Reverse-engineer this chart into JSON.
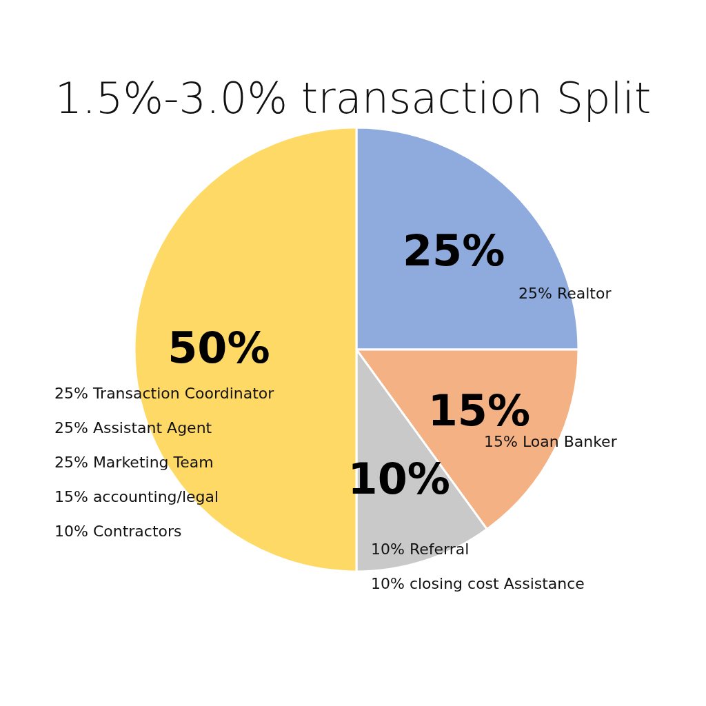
{
  "chart_data": {
    "type": "pie",
    "title": "1.5%-3.0% transaction Split",
    "categories": [
      null,
      null,
      null,
      null
    ],
    "values": [
      25,
      15,
      10,
      50
    ],
    "colors": [
      "#8faadc",
      "#f4b183",
      "#c9c9c9",
      "#ffd966"
    ],
    "value_labels": [
      "25%",
      "15%",
      "10%",
      "50%"
    ],
    "annotations": [
      "25% Realtor",
      "15% Loan Banker",
      "10% Referral",
      "10% closing cost Assistance",
      "25% Transaction Coordinator",
      "25% Assistant Agent",
      "25% Marketing Team",
      "15% accounting/legal",
      "10% Contractors"
    ]
  }
}
